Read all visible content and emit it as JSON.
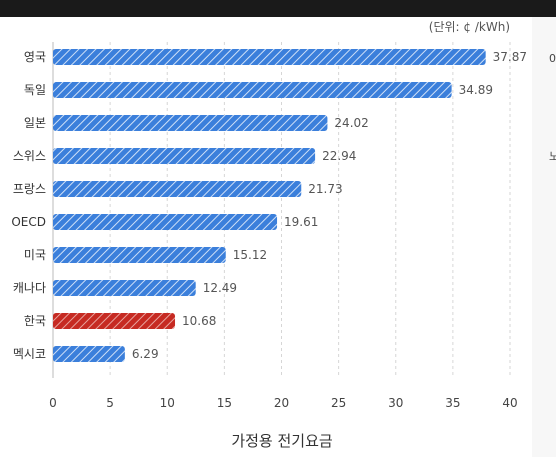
{
  "chart_data": {
    "type": "bar",
    "orientation": "horizontal",
    "unit": "(단위: ¢ /kWh)",
    "xlabel": "가정용 전기요금",
    "categories": [
      "영국",
      "독일",
      "일본",
      "스위스",
      "프랑스",
      "OECD",
      "미국",
      "캐나다",
      "한국",
      "멕시코"
    ],
    "values": [
      37.87,
      34.89,
      24.02,
      22.94,
      21.73,
      19.61,
      15.12,
      12.49,
      10.68,
      6.29
    ],
    "value_labels": [
      "37.87",
      "34.89",
      "24.02",
      "22.94",
      "21.73",
      "19.61",
      "15.12",
      "12.49",
      "10.68",
      "6.29"
    ],
    "highlight_category": "한국",
    "xlim": [
      0,
      40
    ],
    "xticks": [
      0,
      5,
      10,
      15,
      20,
      25,
      30,
      35,
      40
    ],
    "grid": "vertical dashed",
    "colors": {
      "bar": "#3b7fdb",
      "highlight": "#c62a22",
      "highlight_label": "#b8322b"
    }
  },
  "edge_glyphs": [
    "0",
    "노"
  ]
}
